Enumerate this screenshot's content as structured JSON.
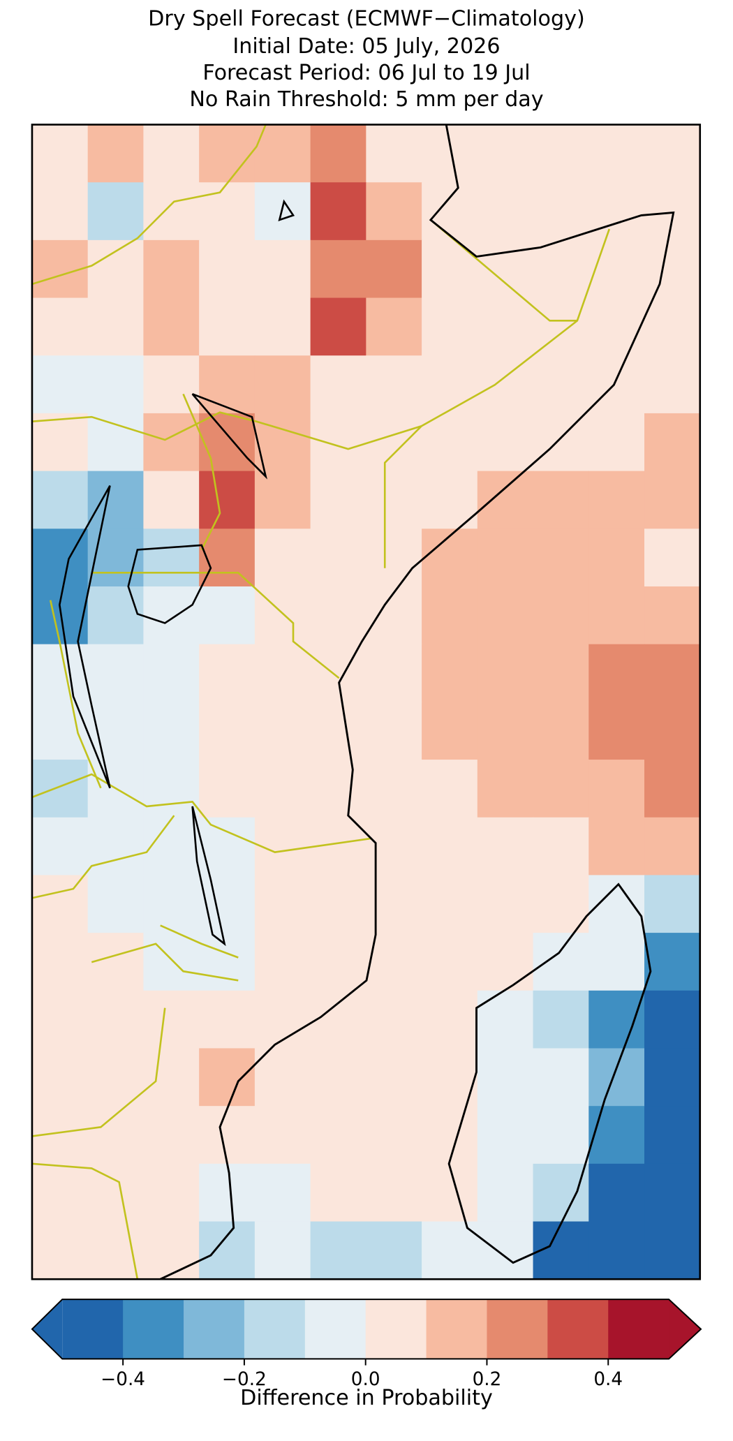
{
  "title": [
    "Dry Spell Forecast (ECMWF−Climatology)",
    "Initial Date: 05 July, 2026",
    "Forecast Period: 06 Jul to 19 Jul",
    "No Rain Threshold: 5 mm per day"
  ],
  "grid": {
    "values": [
      [
        0.05,
        0.15,
        0.05,
        0.15,
        0.15,
        0.25,
        0.05,
        0.05,
        0.05,
        0.05,
        0.05,
        0.05
      ],
      [
        0.05,
        -0.15,
        0.05,
        0.05,
        -0.05,
        0.35,
        0.15,
        0.05,
        0.05,
        0.05,
        0.05,
        0.05
      ],
      [
        0.15,
        0.05,
        0.15,
        0.05,
        0.05,
        0.25,
        0.25,
        0.05,
        0.05,
        0.05,
        0.05,
        0.05
      ],
      [
        0.05,
        0.05,
        0.15,
        0.05,
        0.05,
        0.35,
        0.15,
        0.05,
        0.05,
        0.05,
        0.05,
        0.05
      ],
      [
        -0.05,
        -0.05,
        0.05,
        0.15,
        0.15,
        0.05,
        0.05,
        0.05,
        0.05,
        0.05,
        0.05,
        0.05
      ],
      [
        0.05,
        -0.05,
        0.15,
        0.25,
        0.15,
        0.05,
        0.05,
        0.05,
        0.05,
        0.05,
        0.05,
        0.15
      ],
      [
        -0.15,
        -0.25,
        0.05,
        0.35,
        0.15,
        0.05,
        0.05,
        0.05,
        0.15,
        0.15,
        0.15,
        0.15
      ],
      [
        -0.35,
        -0.25,
        -0.15,
        0.25,
        0.05,
        0.05,
        0.05,
        0.15,
        0.15,
        0.15,
        0.15,
        0.05
      ],
      [
        -0.35,
        -0.15,
        -0.05,
        -0.05,
        0.05,
        0.05,
        0.05,
        0.15,
        0.15,
        0.15,
        0.15,
        0.15
      ],
      [
        -0.05,
        -0.05,
        -0.05,
        0.05,
        0.05,
        0.05,
        0.05,
        0.15,
        0.15,
        0.15,
        0.25,
        0.25
      ],
      [
        -0.05,
        -0.05,
        -0.05,
        0.05,
        0.05,
        0.05,
        0.05,
        0.15,
        0.15,
        0.15,
        0.25,
        0.25
      ],
      [
        -0.15,
        -0.05,
        -0.05,
        0.05,
        0.05,
        0.05,
        0.05,
        0.05,
        0.15,
        0.15,
        0.15,
        0.25
      ],
      [
        -0.05,
        -0.05,
        -0.05,
        -0.05,
        0.05,
        0.05,
        0.05,
        0.05,
        0.05,
        0.05,
        0.15,
        0.15
      ],
      [
        0.05,
        -0.05,
        -0.05,
        -0.05,
        0.05,
        0.05,
        0.05,
        0.05,
        0.05,
        0.05,
        -0.05,
        -0.15
      ],
      [
        0.05,
        0.05,
        -0.05,
        -0.05,
        0.05,
        0.05,
        0.05,
        0.05,
        0.05,
        -0.05,
        -0.05,
        -0.35
      ],
      [
        0.05,
        0.05,
        0.05,
        0.05,
        0.05,
        0.05,
        0.05,
        0.05,
        -0.05,
        -0.15,
        -0.35,
        -0.45
      ],
      [
        0.05,
        0.05,
        0.05,
        0.15,
        0.05,
        0.05,
        0.05,
        0.05,
        -0.05,
        -0.05,
        -0.25,
        -0.45
      ],
      [
        0.05,
        0.05,
        0.05,
        0.05,
        0.05,
        0.05,
        0.05,
        0.05,
        -0.05,
        -0.05,
        -0.35,
        -0.45
      ],
      [
        0.05,
        0.05,
        0.05,
        -0.05,
        -0.05,
        0.05,
        0.05,
        0.05,
        -0.05,
        -0.15,
        -0.45,
        -0.45
      ],
      [
        0.05,
        0.05,
        0.05,
        -0.15,
        -0.05,
        -0.15,
        -0.15,
        -0.05,
        -0.05,
        -0.45,
        -0.45,
        -0.45
      ]
    ]
  },
  "colorbar": {
    "label": "Difference in Probability",
    "clim": [
      -0.5,
      0.5
    ],
    "colors": [
      "#2166ac",
      "#3f8fc2",
      "#7fb8d9",
      "#bcdbea",
      "#e6eff4",
      "#fbe6dc",
      "#f7bba1",
      "#e58a6e",
      "#cc4c45",
      "#a7142b"
    ],
    "ticks": [
      {
        "value": -0.4,
        "label": "−0.4"
      },
      {
        "value": -0.2,
        "label": "−0.2"
      },
      {
        "value": 0,
        "label": "0.0"
      },
      0.2,
      0.4
    ]
  }
}
